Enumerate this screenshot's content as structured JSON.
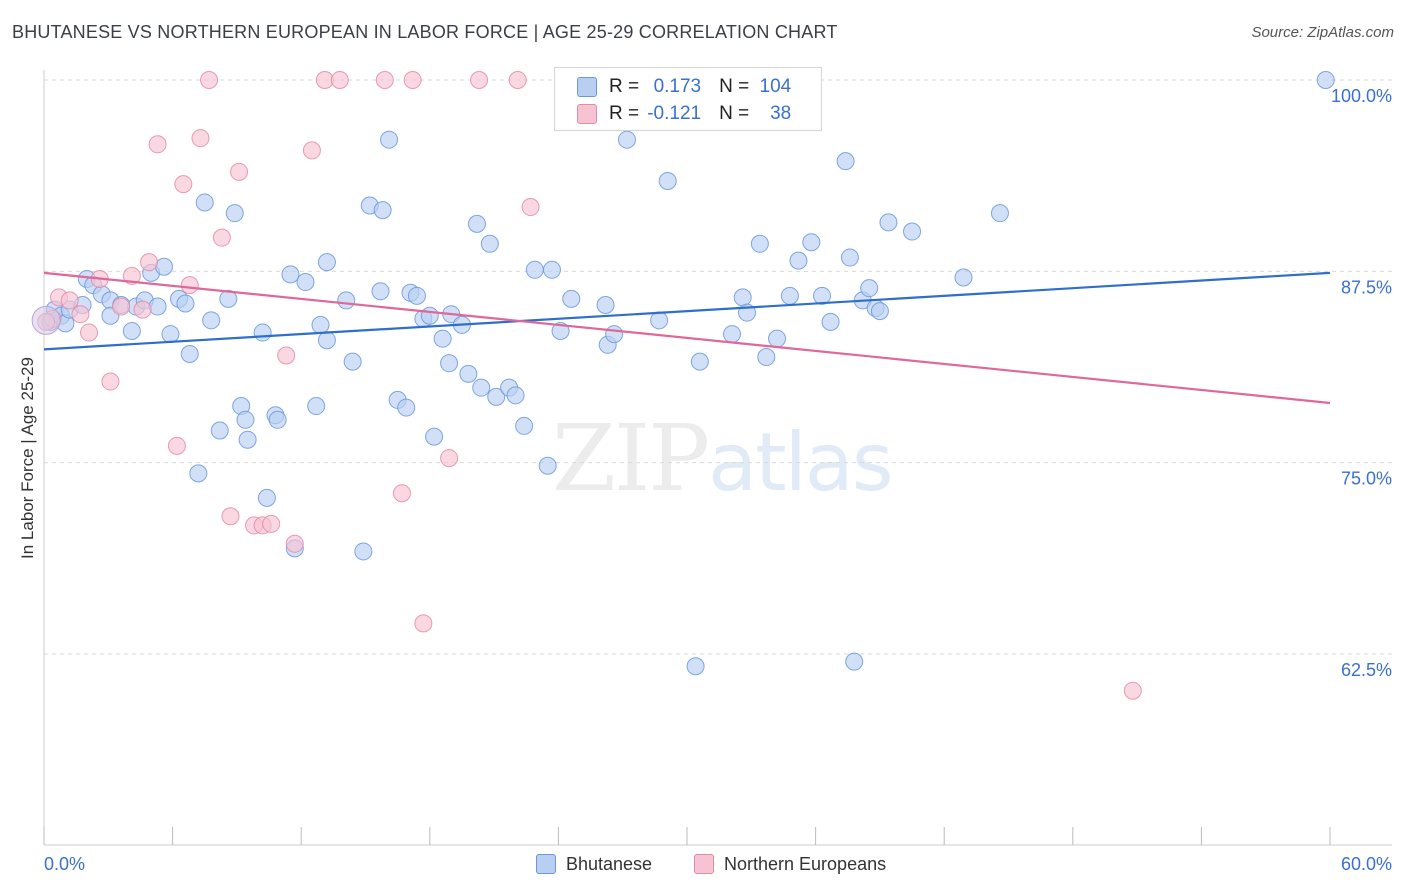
{
  "title": "BHUTANESE VS NORTHERN EUROPEAN IN LABOR FORCE | AGE 25-29 CORRELATION CHART",
  "source": "Source: ZipAtlas.com",
  "watermark": {
    "zip": "ZIP",
    "atlas": "atlas"
  },
  "legend": {
    "r_label": "R =",
    "n_label": "N =",
    "rows": [
      {
        "r": "0.173",
        "n": "104",
        "fill": "#b8cff2",
        "stroke": "#6a98dc"
      },
      {
        "r": "-0.121",
        "n": "38",
        "fill": "#f7c3d3",
        "stroke": "#e48aa8"
      }
    ]
  },
  "bottom_legend": [
    {
      "label": "Bhutanese",
      "fill": "#b8cff2",
      "stroke": "#6a98dc"
    },
    {
      "label": "Northern Europeans",
      "fill": "#f7c3d3",
      "stroke": "#e48aa8"
    }
  ],
  "chart_data": {
    "type": "scatter",
    "title": "BHUTANESE VS NORTHERN EUROPEAN IN LABOR FORCE | AGE 25-29 CORRELATION CHART",
    "xlabel": "",
    "ylabel": "In Labor Force | Age 25-29",
    "xlim": [
      0,
      60
    ],
    "ylim": [
      50,
      101.5
    ],
    "x_tick_labels": [
      "0.0%",
      "60.0%"
    ],
    "y_ticks": [
      62.5,
      75.0,
      87.5,
      100.0
    ],
    "y_tick_labels": [
      "62.5%",
      "75.0%",
      "87.5%",
      "100.0%"
    ],
    "grid": true,
    "legend_position": "top-center",
    "series": [
      {
        "name": "Bhutanese",
        "color": "#6a98dc",
        "fill": "#b8cff2",
        "trend": {
          "x": [
            0,
            60
          ],
          "y": [
            82.4,
            87.4
          ]
        },
        "points": [
          [
            0.3,
            84.2
          ],
          [
            0.5,
            85.0
          ],
          [
            0.8,
            84.6
          ],
          [
            1.0,
            84.1
          ],
          [
            1.2,
            85.0
          ],
          [
            1.8,
            85.3
          ],
          [
            2.0,
            87.0
          ],
          [
            2.3,
            86.6
          ],
          [
            2.7,
            86.0
          ],
          [
            3.1,
            85.6
          ],
          [
            3.1,
            84.6
          ],
          [
            3.6,
            85.3
          ],
          [
            4.1,
            83.6
          ],
          [
            4.3,
            85.2
          ],
          [
            4.7,
            85.6
          ],
          [
            5.0,
            87.4
          ],
          [
            5.3,
            85.2
          ],
          [
            5.6,
            87.8
          ],
          [
            5.9,
            83.4
          ],
          [
            6.3,
            85.7
          ],
          [
            6.6,
            85.4
          ],
          [
            6.8,
            82.1
          ],
          [
            7.5,
            92.0
          ],
          [
            7.8,
            84.3
          ],
          [
            7.2,
            74.3
          ],
          [
            8.2,
            77.1
          ],
          [
            8.6,
            85.7
          ],
          [
            8.9,
            91.3
          ],
          [
            9.2,
            78.7
          ],
          [
            9.4,
            77.8
          ],
          [
            9.5,
            76.5
          ],
          [
            10.2,
            83.5
          ],
          [
            10.4,
            72.7
          ],
          [
            10.8,
            78.1
          ],
          [
            10.9,
            77.8
          ],
          [
            11.5,
            87.3
          ],
          [
            11.7,
            69.4
          ],
          [
            12.2,
            86.8
          ],
          [
            12.7,
            78.7
          ],
          [
            12.9,
            84.0
          ],
          [
            13.2,
            83.0
          ],
          [
            13.2,
            88.1
          ],
          [
            14.1,
            85.6
          ],
          [
            14.4,
            81.6
          ],
          [
            14.9,
            69.2
          ],
          [
            15.2,
            91.8
          ],
          [
            15.7,
            86.2
          ],
          [
            15.8,
            91.5
          ],
          [
            16.1,
            96.1
          ],
          [
            16.5,
            79.1
          ],
          [
            16.9,
            78.6
          ],
          [
            17.1,
            86.1
          ],
          [
            17.4,
            85.9
          ],
          [
            17.7,
            84.4
          ],
          [
            18.0,
            84.6
          ],
          [
            18.2,
            76.7
          ],
          [
            18.6,
            83.1
          ],
          [
            18.9,
            81.5
          ],
          [
            19.0,
            84.7
          ],
          [
            19.5,
            84.0
          ],
          [
            19.8,
            80.8
          ],
          [
            20.2,
            90.6
          ],
          [
            20.4,
            79.9
          ],
          [
            20.8,
            89.3
          ],
          [
            21.1,
            79.3
          ],
          [
            21.7,
            79.9
          ],
          [
            22.0,
            79.4
          ],
          [
            22.4,
            77.4
          ],
          [
            22.9,
            87.6
          ],
          [
            23.5,
            74.8
          ],
          [
            23.7,
            87.6
          ],
          [
            24.1,
            83.6
          ],
          [
            24.6,
            85.7
          ],
          [
            26.2,
            85.3
          ],
          [
            26.3,
            82.7
          ],
          [
            26.6,
            83.4
          ],
          [
            27.2,
            96.1
          ],
          [
            28.7,
            84.3
          ],
          [
            29.1,
            93.4
          ],
          [
            30.4,
            61.7
          ],
          [
            30.6,
            81.6
          ],
          [
            32.1,
            83.4
          ],
          [
            32.6,
            85.8
          ],
          [
            32.8,
            84.8
          ],
          [
            33.4,
            89.3
          ],
          [
            33.7,
            81.9
          ],
          [
            34.2,
            83.1
          ],
          [
            34.8,
            85.9
          ],
          [
            35.2,
            88.2
          ],
          [
            35.8,
            89.4
          ],
          [
            36.3,
            85.9
          ],
          [
            36.7,
            84.2
          ],
          [
            37.4,
            94.7
          ],
          [
            37.6,
            88.4
          ],
          [
            37.8,
            62.0
          ],
          [
            38.2,
            85.6
          ],
          [
            38.5,
            86.4
          ],
          [
            38.8,
            85.1
          ],
          [
            39.0,
            84.9
          ],
          [
            39.4,
            90.7
          ],
          [
            40.5,
            90.1
          ],
          [
            42.9,
            87.1
          ],
          [
            44.6,
            91.3
          ],
          [
            59.8,
            100.0
          ]
        ]
      },
      {
        "name": "Northern Europeans",
        "color": "#e48aa8",
        "fill": "#f7c3d3",
        "trend": {
          "x": [
            0,
            60
          ],
          "y": [
            87.4,
            78.9
          ]
        },
        "points": [
          [
            0.4,
            84.4
          ],
          [
            0.7,
            85.8
          ],
          [
            1.2,
            85.6
          ],
          [
            1.7,
            84.7
          ],
          [
            2.1,
            83.5
          ],
          [
            2.6,
            87.0
          ],
          [
            3.1,
            80.3
          ],
          [
            3.6,
            85.2
          ],
          [
            4.1,
            87.2
          ],
          [
            4.6,
            85.0
          ],
          [
            4.9,
            88.1
          ],
          [
            5.3,
            95.8
          ],
          [
            6.2,
            76.1
          ],
          [
            6.5,
            93.2
          ],
          [
            6.8,
            86.6
          ],
          [
            7.3,
            96.2
          ],
          [
            7.7,
            100.0
          ],
          [
            8.3,
            89.7
          ],
          [
            8.7,
            71.5
          ],
          [
            9.1,
            94.0
          ],
          [
            9.8,
            70.9
          ],
          [
            10.2,
            70.9
          ],
          [
            10.6,
            71.0
          ],
          [
            11.3,
            82.0
          ],
          [
            11.7,
            69.7
          ],
          [
            12.5,
            95.4
          ],
          [
            13.1,
            100.0
          ],
          [
            13.8,
            100.0
          ],
          [
            15.9,
            100.0
          ],
          [
            16.7,
            73.0
          ],
          [
            17.2,
            100.0
          ],
          [
            17.7,
            64.5
          ],
          [
            18.9,
            75.3
          ],
          [
            20.3,
            100.0
          ],
          [
            22.1,
            100.0
          ],
          [
            22.7,
            91.7
          ],
          [
            50.8,
            60.1
          ],
          [
            0.1,
            84.2
          ]
        ]
      }
    ]
  }
}
